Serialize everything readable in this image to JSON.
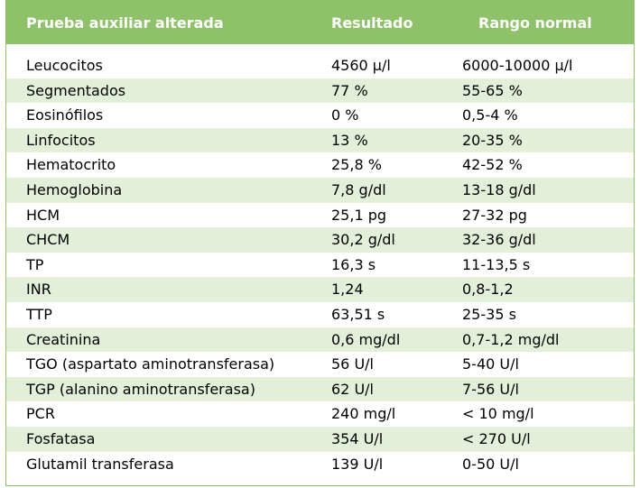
{
  "table": {
    "headers": [
      "Prueba auxiliar alterada",
      "Resultado",
      "Rango normal"
    ],
    "rows": [
      {
        "test": "Leucocitos",
        "result": "4560 µ/l",
        "range": "6000-10000 µ/l"
      },
      {
        "test": "Segmentados",
        "result": "77 %",
        "range": "55-65 %"
      },
      {
        "test": "Eosinófilos",
        "result": "0 %",
        "range": "0,5-4 %"
      },
      {
        "test": "Linfocitos",
        "result": "13 %",
        "range": "20-35 %"
      },
      {
        "test": "Hematocrito",
        "result": "25,8 %",
        "range": "42-52 %"
      },
      {
        "test": "Hemoglobina",
        "result": "7,8 g/dl",
        "range": "13-18  g/dl"
      },
      {
        "test": "HCM",
        "result": "25,1 pg",
        "range": "27-32  pg"
      },
      {
        "test": "CHCM",
        "result": "30,2 g/dl",
        "range": "32-36  g/dl"
      },
      {
        "test": "TP",
        "result": "16,3 s",
        "range": "11-13,5 s"
      },
      {
        "test": "INR",
        "result": "1,24",
        "range": "0,8-1,2"
      },
      {
        "test": "TTP",
        "result": "63,51 s",
        "range": "25-35 s"
      },
      {
        "test": "Creatinina",
        "result": "0,6 mg/dl",
        "range": "0,7-1,2 mg/dl"
      },
      {
        "test": "TGO (aspartato aminotransferasa)",
        "result": "56 U/l",
        "range": "5-40 U/l"
      },
      {
        "test": "TGP (alanino aminotransferasa)",
        "result": "62 U/l",
        "range": "7-56 U/l"
      },
      {
        "test": "PCR",
        "result": "240 mg/l",
        "range": "< 10 mg/l"
      },
      {
        "test": "Fosfatasa",
        "result": "354 U/l",
        "range": "< 270 U/l"
      },
      {
        "test": "Glutamil transferasa",
        "result": "139 U/l",
        "range": "0-50 U/l"
      }
    ]
  },
  "colors": {
    "header_bg": "#8fc16a",
    "shaded_row_bg": "#e3efd8"
  }
}
